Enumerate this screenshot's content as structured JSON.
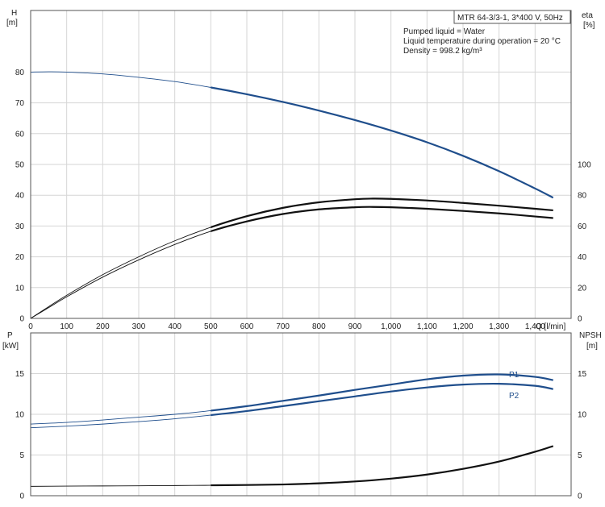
{
  "chart_data": [
    {
      "type": "line",
      "panel": "top",
      "title": "MTR 64-3/3-1, 3*400 V, 50Hz",
      "info": [
        "Pumped liquid = Water",
        "Liquid temperature during operation = 20 °C",
        "Density = 998.2 kg/m³"
      ],
      "ylabel_left": [
        "H",
        "[m]"
      ],
      "ylabel_right": [
        "eta",
        "[%]"
      ],
      "xlabel": "Q [l/min]",
      "xlim": [
        0,
        1500
      ],
      "xticks": [
        0,
        100,
        200,
        300,
        400,
        500,
        600,
        700,
        800,
        900,
        1000,
        1100,
        1200,
        1300,
        1400
      ],
      "xtick_labels": [
        "0",
        "100",
        "200",
        "300",
        "400",
        "500",
        "600",
        "700",
        "800",
        "900",
        "1,000",
        "1,100",
        "1,200",
        "1,300",
        "1,400"
      ],
      "ylim_left": [
        0,
        100
      ],
      "yticks_left": [
        0,
        10,
        20,
        30,
        40,
        50,
        60,
        70,
        80
      ],
      "ylim_right": [
        0,
        200
      ],
      "yticks_right": [
        0,
        20,
        40,
        60,
        80,
        100
      ],
      "grid": true,
      "series": [
        {
          "color": "#1f4e8c",
          "axis": "left",
          "x": [
            0,
            50,
            100,
            200,
            300,
            400,
            500,
            600,
            700,
            800,
            900,
            1000,
            1100,
            1200,
            1300,
            1400,
            1450
          ],
          "y": [
            80.0,
            80.1,
            80.0,
            79.4,
            78.3,
            76.9,
            75.0,
            72.8,
            70.3,
            67.5,
            64.4,
            61.0,
            57.2,
            52.8,
            47.8,
            42.2,
            39.2
          ]
        },
        {
          "color": "#111111",
          "axis": "left",
          "x": [
            0,
            50,
            100,
            200,
            300,
            400,
            500,
            600,
            700,
            800,
            900,
            950,
            1000,
            1100,
            1200,
            1300,
            1400,
            1450
          ],
          "y": [
            0,
            3.8,
            7.5,
            14.2,
            20.0,
            25.2,
            29.6,
            33.2,
            35.9,
            37.7,
            38.7,
            38.9,
            38.8,
            38.3,
            37.5,
            36.6,
            35.6,
            35.1
          ]
        },
        {
          "color": "#111111",
          "axis": "left",
          "x": [
            0,
            50,
            100,
            200,
            300,
            400,
            500,
            600,
            700,
            800,
            900,
            950,
            1000,
            1100,
            1200,
            1300,
            1400,
            1450
          ],
          "y": [
            0,
            3.5,
            7.0,
            13.4,
            19.0,
            24.0,
            28.3,
            31.5,
            33.9,
            35.4,
            36.1,
            36.2,
            36.1,
            35.6,
            34.9,
            34.1,
            33.1,
            32.6
          ]
        }
      ]
    },
    {
      "type": "line",
      "panel": "bottom",
      "ylabel_left": [
        "P",
        "[kW]"
      ],
      "ylabel_right": [
        "NPSH",
        "[m]"
      ],
      "xlim": [
        0,
        1500
      ],
      "ylim_left": [
        0,
        20
      ],
      "yticks_left": [
        0,
        5,
        10,
        15
      ],
      "ylim_right": [
        0,
        20
      ],
      "yticks_right": [
        0,
        5,
        10,
        15
      ],
      "grid": true,
      "series": [
        {
          "name": "P1",
          "color": "#1f4e8c",
          "x": [
            0,
            100,
            200,
            300,
            400,
            500,
            600,
            700,
            800,
            900,
            1000,
            1100,
            1200,
            1300,
            1400,
            1450
          ],
          "y": [
            8.8,
            9.0,
            9.3,
            9.65,
            10.0,
            10.45,
            11.0,
            11.65,
            12.3,
            13.0,
            13.65,
            14.3,
            14.75,
            14.9,
            14.6,
            14.2
          ]
        },
        {
          "name": "P2",
          "color": "#1f4e8c",
          "x": [
            0,
            100,
            200,
            300,
            400,
            500,
            600,
            700,
            800,
            900,
            1000,
            1100,
            1200,
            1300,
            1400,
            1450
          ],
          "y": [
            8.35,
            8.55,
            8.8,
            9.1,
            9.45,
            9.9,
            10.4,
            11.0,
            11.6,
            12.2,
            12.8,
            13.3,
            13.65,
            13.75,
            13.5,
            13.1
          ]
        },
        {
          "color": "#111111",
          "axis": "right",
          "x": [
            0,
            100,
            200,
            300,
            400,
            500,
            600,
            700,
            800,
            900,
            1000,
            1100,
            1200,
            1300,
            1400,
            1450
          ],
          "y": [
            1.15,
            1.18,
            1.2,
            1.22,
            1.25,
            1.28,
            1.32,
            1.38,
            1.52,
            1.75,
            2.1,
            2.6,
            3.3,
            4.2,
            5.4,
            6.1
          ]
        }
      ]
    }
  ]
}
